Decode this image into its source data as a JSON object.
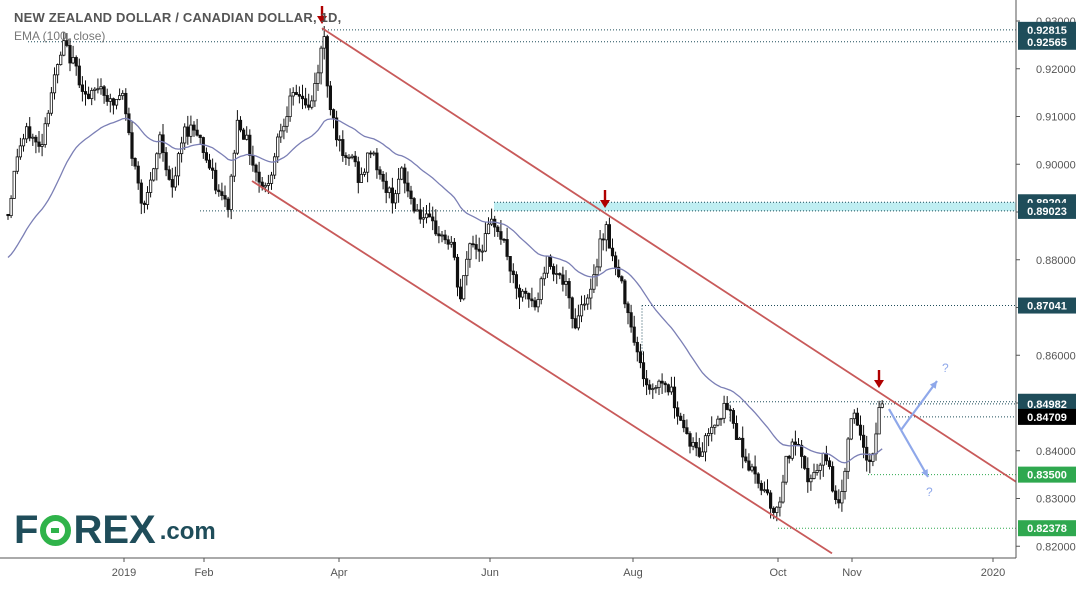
{
  "header": {
    "title": "NEW ZEALAND DOLLAR / CANADIAN DOLLAR, 1D,",
    "indicator": "EMA (100, close)"
  },
  "brand": {
    "logo_left": "F",
    "logo_right": "REX",
    "logo_suffix": ".com",
    "colors": {
      "text": "#1f4d5a",
      "accent": "#2fb34a"
    }
  },
  "question_marks": [
    "?",
    "?"
  ],
  "chart_data": {
    "type": "candlestick",
    "title": "NEW ZEALAND DOLLAR / CANADIAN DOLLAR, 1D,",
    "indicator": "EMA (100, close)",
    "ylim": [
      0.8175,
      0.9305
    ],
    "y_ticks": [
      "0.93000",
      "0.92000",
      "0.91000",
      "0.90000",
      "0.89000",
      "0.88000",
      "0.87000",
      "0.86000",
      "0.85000",
      "0.84000",
      "0.83000",
      "0.82000"
    ],
    "x_ticks": [
      "2019",
      "Feb",
      "Apr",
      "Jun",
      "Aug",
      "Oct",
      "Nov",
      "2020"
    ],
    "price_labels": [
      {
        "label": "0.92815",
        "value": 0.92815,
        "style": "dark"
      },
      {
        "label": "0.92565",
        "value": 0.92565,
        "style": "dark"
      },
      {
        "label": "0.89204",
        "value": 0.89204,
        "style": "dark"
      },
      {
        "label": "0.89023",
        "value": 0.89023,
        "style": "dark"
      },
      {
        "label": "0.87041",
        "value": 0.87041,
        "style": "dark"
      },
      {
        "label": "0.85026",
        "value": 0.85026,
        "style": "dark"
      },
      {
        "label": "0.84982",
        "value": 0.84982,
        "style": "dark"
      },
      {
        "label": "0.84709",
        "value": 0.84709,
        "style": "black"
      },
      {
        "label": "0.83500",
        "value": 0.835,
        "style": "green"
      },
      {
        "label": "0.82378",
        "value": 0.82378,
        "style": "green"
      }
    ],
    "resistance_zone": [
      0.89023,
      0.89204
    ],
    "current_price": 0.84709,
    "colors": {
      "channel": "#c85a5a",
      "ema": "#7b7fb5",
      "arrow": "#b00000",
      "zone": "#bfeef2",
      "projection": "#8fa8ea",
      "candle": "#111111",
      "label_dark": "#1f4d5a",
      "label_green": "#2fa84f"
    }
  }
}
